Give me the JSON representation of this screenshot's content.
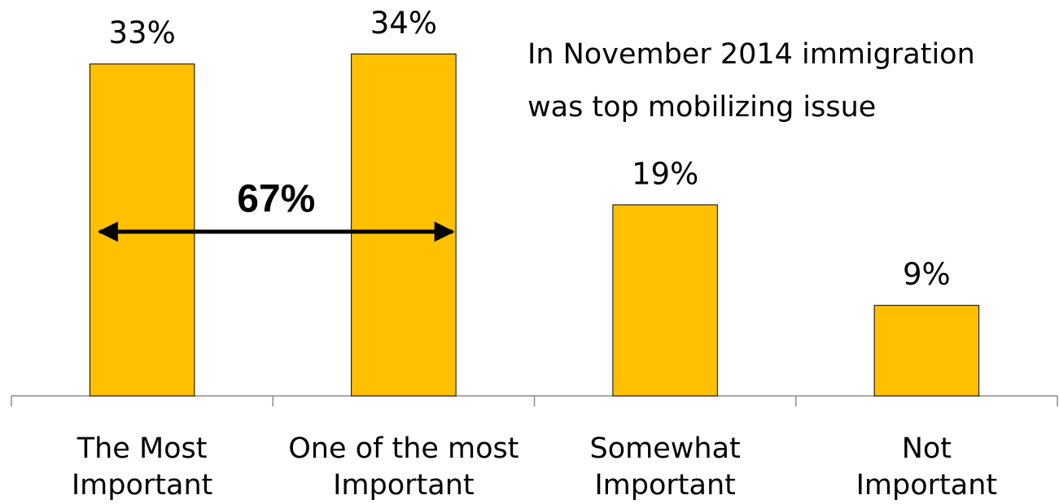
{
  "chart_data": {
    "type": "bar",
    "categories": [
      "The Most\nImportant",
      "One of the most\nImportant",
      "Somewhat\nImportant",
      "Not\nImportant"
    ],
    "values": [
      33,
      34,
      19,
      9
    ],
    "value_labels": [
      "33%",
      "34%",
      "19%",
      "9%"
    ],
    "color": "#ffc000",
    "ylim": [
      0,
      35
    ],
    "annotations": [
      "In November 2014 immigration\nwas top mobilizing issue",
      "67%"
    ]
  }
}
